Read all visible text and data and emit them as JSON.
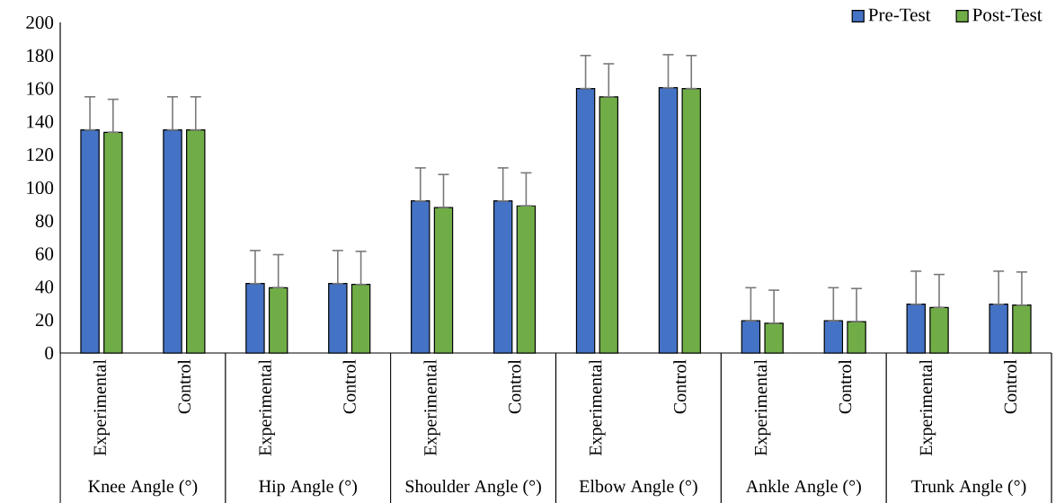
{
  "chart_data": {
    "type": "bar",
    "categories": [
      "Experimental",
      "Control",
      "Experimental",
      "Control",
      "Experimental",
      "Control",
      "Experimental",
      "Control",
      "Experimental",
      "Control",
      "Experimental",
      "Control"
    ],
    "annotations": [
      "Knee Angle (°)",
      "Hip Angle (°)",
      "Shoulder Angle (°)",
      "Elbow Angle (°)",
      "Ankle Angle (°)",
      "Trunk Angle (°)"
    ],
    "series": [
      {
        "name": "Pre-Test",
        "color": "#4472c4",
        "values": [
          135,
          135,
          42,
          42,
          92,
          92,
          160,
          160.5,
          19.5,
          19.5,
          29.5,
          29.5
        ],
        "errors": [
          [
            135,
            155
          ],
          [
            135,
            155
          ],
          [
            42,
            62
          ],
          [
            42,
            62
          ],
          [
            92,
            112
          ],
          [
            92,
            112
          ],
          [
            160,
            180
          ],
          [
            160.5,
            180.5
          ],
          [
            19.5,
            39.5
          ],
          [
            19.5,
            39.5
          ],
          [
            29.5,
            49.5
          ],
          [
            29.5,
            49.5
          ]
        ]
      },
      {
        "name": "Post-Test",
        "color": "#70ad47",
        "values": [
          133.5,
          135,
          39.5,
          41.5,
          88,
          89,
          155,
          160,
          18,
          19,
          27.5,
          29
        ],
        "errors": [
          [
            133.5,
            153.5
          ],
          [
            135,
            155
          ],
          [
            39.5,
            59.5
          ],
          [
            41.5,
            61.5
          ],
          [
            88,
            108
          ],
          [
            89,
            109
          ],
          [
            155,
            175
          ],
          [
            160,
            180
          ],
          [
            18,
            38
          ],
          [
            19,
            39
          ],
          [
            27.5,
            47.5
          ],
          [
            29,
            49
          ]
        ]
      }
    ],
    "ylim": [
      0,
      200
    ],
    "yticks": [
      0,
      20,
      40,
      60,
      80,
      100,
      120,
      140,
      160,
      180,
      200
    ],
    "legend": "top right"
  }
}
